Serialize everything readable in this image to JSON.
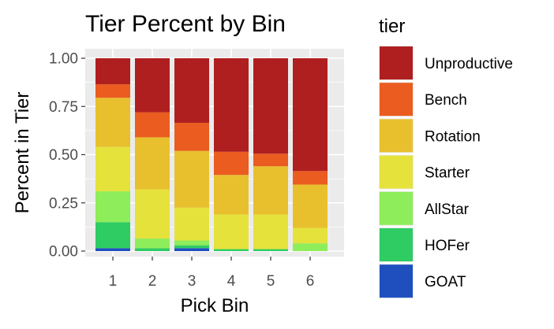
{
  "chart_data": {
    "type": "bar",
    "stacked": true,
    "title": "Tier Percent by Bin",
    "xlabel": "Pick Bin",
    "ylabel": "Percent in Tier",
    "ylim": [
      0,
      1
    ],
    "y_ticks": [
      "0.00",
      "0.25",
      "0.50",
      "0.75",
      "1.00"
    ],
    "grid": true,
    "legend_title": "tier",
    "legend_position": "right",
    "categories": [
      "1",
      "2",
      "3",
      "4",
      "5",
      "6"
    ],
    "series": [
      {
        "name": "GOAT",
        "color": "#1f4fbf",
        "values": [
          0.015,
          0.0,
          0.015,
          0.0,
          0.0,
          0.0
        ]
      },
      {
        "name": "HOFer",
        "color": "#2ecc63",
        "values": [
          0.135,
          0.015,
          0.015,
          0.01,
          0.01,
          0.0
        ]
      },
      {
        "name": "AllStar",
        "color": "#8eed5a",
        "values": [
          0.16,
          0.05,
          0.025,
          0.0,
          0.0,
          0.04
        ]
      },
      {
        "name": "Starter",
        "color": "#e5e23c",
        "values": [
          0.23,
          0.255,
          0.17,
          0.18,
          0.18,
          0.08
        ]
      },
      {
        "name": "Rotation",
        "color": "#e8c02e",
        "values": [
          0.255,
          0.27,
          0.295,
          0.205,
          0.25,
          0.225
        ]
      },
      {
        "name": "Bench",
        "color": "#ea5c1f",
        "values": [
          0.07,
          0.13,
          0.145,
          0.12,
          0.065,
          0.07
        ]
      },
      {
        "name": "Unproductive",
        "color": "#b01f1f",
        "values": [
          0.135,
          0.28,
          0.335,
          0.485,
          0.495,
          0.585
        ]
      }
    ],
    "legend_order": [
      "Unproductive",
      "Bench",
      "Rotation",
      "Starter",
      "AllStar",
      "HOFer",
      "GOAT"
    ]
  }
}
